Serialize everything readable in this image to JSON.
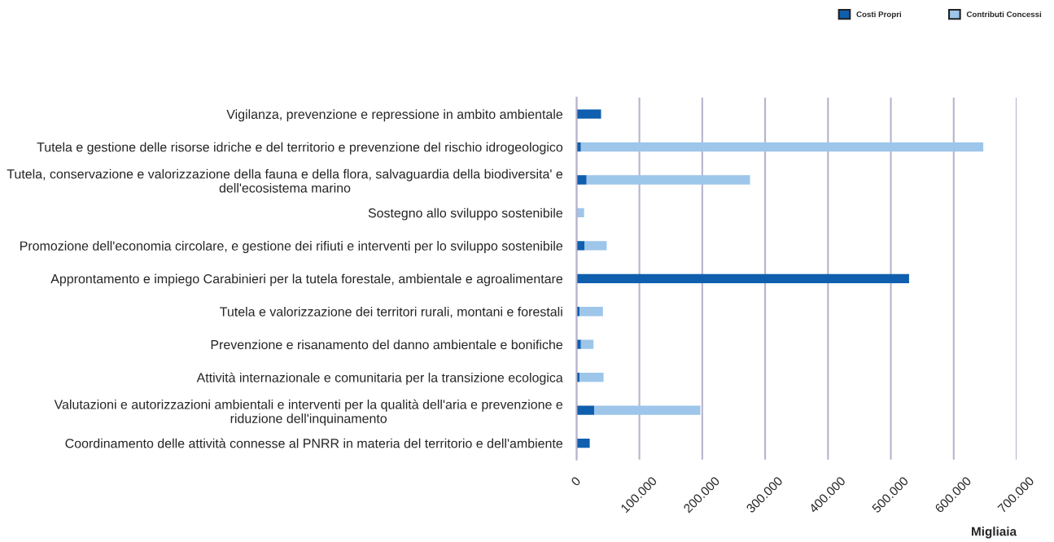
{
  "chart_data": {
    "type": "bar",
    "orientation": "horizontal",
    "stacked": true,
    "xlabel": "Migliaia",
    "categories": [
      "Vigilanza, prevenzione e repressione in ambito ambientale",
      "Tutela e gestione delle risorse idriche e del territorio e prevenzione del rischio idrogeologico",
      "Tutela, conservazione e valorizzazione della fauna e della flora, salvaguardia della biodiversita' e\ndell'ecosistema marino",
      "Sostegno allo sviluppo sostenibile",
      "Promozione dell'economia circolare, e gestione dei rifiuti e interventi per lo sviluppo sostenibile",
      "Approntamento e impiego Carabinieri per la tutela forestale, ambientale e agroalimentare",
      "Tutela e valorizzazione dei territori rurali, montani e forestali",
      "Prevenzione e risanamento del danno ambientale e bonifiche",
      "Attività internazionale e comunitaria per la transizione ecologica",
      "Valutazioni e autorizzazioni ambientali e interventi per la qualità dell'aria e prevenzione e\nriduzione dell'inquinamento",
      "Coordinamento delle attività connesse al PNRR in materia del territorio e dell'ambiente"
    ],
    "series": [
      {
        "name": "Costi Propri",
        "color": "#0f5fae",
        "values": [
          39000,
          7000,
          16000,
          0,
          13000,
          529000,
          5000,
          7000,
          5000,
          28000,
          21000
        ]
      },
      {
        "name": "Contributi Concessi",
        "color": "#9dc6ea",
        "values": [
          0,
          640000,
          260000,
          12000,
          35000,
          0,
          37000,
          20000,
          38000,
          169000,
          0
        ]
      }
    ],
    "xlim": [
      0,
      700000
    ],
    "xticks": [
      0,
      {
        "value": 100000,
        "label": "100.000"
      },
      {
        "value": 200000,
        "label": "200.000"
      },
      {
        "value": 300000,
        "label": "300.000"
      },
      {
        "value": 400000,
        "label": "400.000"
      },
      {
        "value": 500000,
        "label": "500.000"
      },
      {
        "value": 600000,
        "label": "600.000"
      },
      {
        "value": 700000,
        "label": "700.000"
      }
    ],
    "grid": "x",
    "legend": "top right"
  }
}
